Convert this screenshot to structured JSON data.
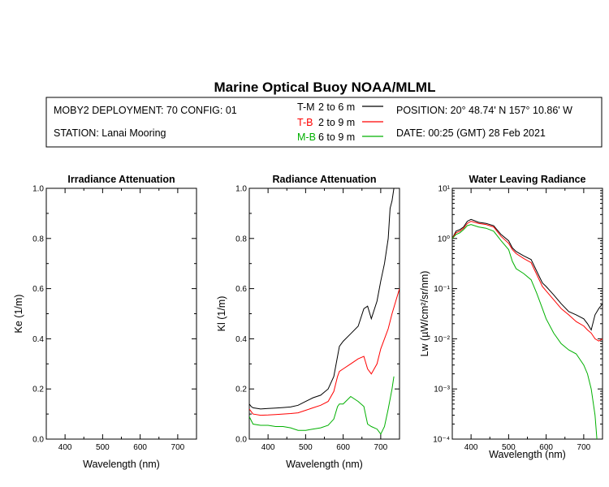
{
  "header": {
    "title": "Marine Optical Buoy NOAA/MLML",
    "deployment": "MOBY2 DEPLOYMENT: 70 CONFIG: 01",
    "station": "STATION: Lanai Mooring",
    "position": "POSITION: 20° 48.74' N   157° 10.86' W",
    "date": "DATE: 00:25 (GMT) 28 Feb 2021",
    "legend": [
      {
        "key": "T-M",
        "range": "2 to 6  m",
        "color": "#000000"
      },
      {
        "key": "T-B",
        "range": "2 to 9  m",
        "color": "#ff0000"
      },
      {
        "key": "M-B",
        "range": "6 to 9  m",
        "color": "#00b000"
      }
    ]
  },
  "chart_data": [
    {
      "type": "line",
      "title": "Irradiance Attenuation",
      "xlabel": "Wavelength (nm)",
      "ylabel": "Ke  (1/m)",
      "xlim": [
        350,
        750
      ],
      "ylim": [
        0,
        1
      ],
      "xticks": [
        400,
        500,
        600,
        700
      ],
      "yticks": [
        "0.0",
        "0.2",
        "0.4",
        "0.6",
        "0.8",
        "1.0"
      ],
      "series": []
    },
    {
      "type": "line",
      "title": "Radiance Attenuation",
      "xlabel": "Wavelength (nm)",
      "ylabel": "Kl  (1/m)",
      "xlim": [
        350,
        750
      ],
      "ylim": [
        0,
        1
      ],
      "xticks": [
        400,
        500,
        600,
        700
      ],
      "yticks": [
        "0.0",
        "0.2",
        "0.4",
        "0.6",
        "0.8",
        "1.0"
      ],
      "series": [
        {
          "name": "T-M",
          "color": "#000000",
          "x": [
            350,
            355,
            360,
            380,
            400,
            420,
            440,
            460,
            480,
            500,
            520,
            540,
            560,
            575,
            585,
            590,
            600,
            620,
            640,
            655,
            665,
            675,
            690,
            700,
            710,
            720,
            725,
            730,
            735
          ],
          "y": [
            0.14,
            0.13,
            0.125,
            0.12,
            0.122,
            0.124,
            0.126,
            0.128,
            0.135,
            0.15,
            0.165,
            0.175,
            0.2,
            0.25,
            0.33,
            0.37,
            0.39,
            0.42,
            0.45,
            0.52,
            0.53,
            0.48,
            0.55,
            0.63,
            0.7,
            0.8,
            0.92,
            0.95,
            1.0
          ]
        },
        {
          "name": "T-B",
          "color": "#ff0000",
          "x": [
            350,
            360,
            380,
            400,
            420,
            440,
            460,
            480,
            500,
            520,
            540,
            560,
            575,
            585,
            590,
            600,
            620,
            640,
            655,
            665,
            675,
            690,
            700,
            710,
            720,
            730,
            740,
            750
          ],
          "y": [
            0.12,
            0.1,
            0.095,
            0.096,
            0.098,
            0.1,
            0.102,
            0.105,
            0.115,
            0.125,
            0.135,
            0.15,
            0.19,
            0.25,
            0.27,
            0.28,
            0.3,
            0.32,
            0.33,
            0.28,
            0.26,
            0.3,
            0.36,
            0.4,
            0.44,
            0.5,
            0.55,
            0.6
          ]
        },
        {
          "name": "M-B",
          "color": "#00b000",
          "x": [
            350,
            360,
            380,
            400,
            420,
            440,
            460,
            480,
            500,
            520,
            540,
            560,
            575,
            585,
            590,
            600,
            620,
            640,
            655,
            665,
            675,
            690,
            700,
            710,
            720,
            730,
            735
          ],
          "y": [
            0.09,
            0.06,
            0.055,
            0.055,
            0.05,
            0.05,
            0.045,
            0.035,
            0.035,
            0.04,
            0.045,
            0.055,
            0.08,
            0.13,
            0.14,
            0.14,
            0.17,
            0.15,
            0.13,
            0.06,
            0.05,
            0.04,
            0.02,
            0.05,
            0.12,
            0.2,
            0.25
          ]
        }
      ]
    },
    {
      "type": "line",
      "title": "Water Leaving Radiance",
      "xlabel": "Wavelength (nm)",
      "ylabel": "Lw  (µW/cm²/sr/nm)",
      "xlim": [
        350,
        750
      ],
      "ylim": [
        0.0001,
        10
      ],
      "yscale": "log",
      "xticks": [
        400,
        500,
        600,
        700
      ],
      "yticks": [
        "10⁻⁴",
        "10⁻³",
        "10⁻²",
        "10⁻¹",
        "10⁰",
        "10¹"
      ],
      "series": [
        {
          "name": "T-M",
          "color": "#000000",
          "x": [
            350,
            360,
            370,
            380,
            390,
            400,
            420,
            440,
            460,
            480,
            500,
            510,
            520,
            540,
            560,
            575,
            590,
            600,
            620,
            640,
            660,
            680,
            700,
            710,
            720,
            730,
            740,
            750
          ],
          "y": [
            1.0,
            1.4,
            1.5,
            1.7,
            2.2,
            2.4,
            2.1,
            2.0,
            1.8,
            1.2,
            0.9,
            0.65,
            0.55,
            0.45,
            0.38,
            0.22,
            0.13,
            0.11,
            0.075,
            0.05,
            0.035,
            0.03,
            0.025,
            0.02,
            0.015,
            0.03,
            0.04,
            0.05
          ]
        },
        {
          "name": "T-B",
          "color": "#ff0000",
          "x": [
            350,
            360,
            370,
            380,
            390,
            400,
            420,
            440,
            460,
            480,
            500,
            510,
            520,
            540,
            560,
            575,
            590,
            600,
            620,
            640,
            660,
            680,
            700,
            710,
            720,
            730,
            740,
            750
          ],
          "y": [
            1.0,
            1.3,
            1.4,
            1.6,
            2.0,
            2.2,
            2.0,
            1.9,
            1.7,
            1.1,
            0.8,
            0.6,
            0.5,
            0.4,
            0.33,
            0.19,
            0.11,
            0.09,
            0.06,
            0.04,
            0.03,
            0.022,
            0.018,
            0.015,
            0.013,
            0.01,
            0.009,
            0.01
          ]
        },
        {
          "name": "M-B",
          "color": "#00b000",
          "x": [
            350,
            360,
            370,
            380,
            390,
            400,
            420,
            440,
            460,
            480,
            500,
            510,
            520,
            540,
            560,
            575,
            590,
            600,
            620,
            640,
            660,
            680,
            700,
            710,
            720,
            730,
            735
          ],
          "y": [
            1.0,
            1.2,
            1.3,
            1.5,
            1.8,
            1.9,
            1.7,
            1.6,
            1.4,
            0.9,
            0.6,
            0.35,
            0.25,
            0.2,
            0.15,
            0.08,
            0.04,
            0.025,
            0.013,
            0.008,
            0.006,
            0.005,
            0.003,
            0.002,
            0.001,
            0.0003,
            0.0001
          ]
        }
      ]
    }
  ]
}
